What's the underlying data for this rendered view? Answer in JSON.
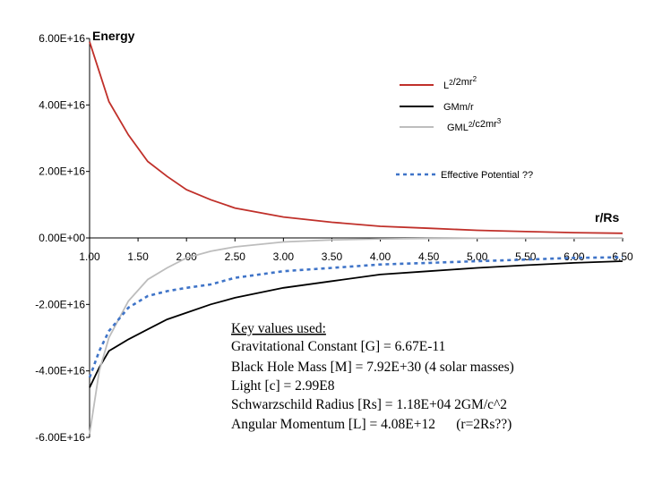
{
  "chart_data": {
    "type": "line",
    "ylabel": "Energy",
    "xlabel": "r/Rs",
    "xlim": [
      1.0,
      6.5
    ],
    "ylim": [
      -6e+16,
      6e+16
    ],
    "x_ticks": [
      "1.00",
      "1.50",
      "2.00",
      "2.50",
      "3.00",
      "3.50",
      "4.00",
      "4.50",
      "5.00",
      "5.50",
      "6.00",
      "6.50"
    ],
    "y_ticks": [
      "6.00E+16",
      "4.00E+16",
      "2.00E+16",
      "0.00E+00",
      "-2.00E+16",
      "-4.00E+16",
      "-6.00E+16"
    ],
    "grid": false,
    "legend_position": "top-right",
    "x": [
      1.0,
      1.1,
      1.2,
      1.4,
      1.6,
      1.8,
      2.0,
      2.25,
      2.5,
      3.0,
      3.5,
      4.0,
      4.5,
      5.0,
      5.5,
      6.0,
      6.5
    ],
    "series": [
      {
        "name": "L²/2mr²",
        "legend_main": "L",
        "legend_sup1": "2",
        "legend_mid": "/2mr",
        "legend_sup2": "2",
        "legend_tail": "",
        "color": "#c0302a",
        "dash": "none",
        "values": [
          5.9e+16,
          5e+16,
          4.1e+16,
          3.1e+16,
          2.3e+16,
          1.85e+16,
          1.45e+16,
          1.15e+16,
          9000000000000000.0,
          6300000000000000.0,
          4700000000000000.0,
          3500000000000000.0,
          2900000000000000.0,
          2300000000000000.0,
          1900000000000000.0,
          1600000000000000.0,
          1400000000000000.0
        ]
      },
      {
        "name": "GMm/r",
        "legend_main": "GMm/r",
        "legend_sup1": "",
        "legend_mid": "",
        "legend_sup2": "",
        "legend_tail": "",
        "color": "#000000",
        "dash": "none",
        "values": [
          -4.5e+16,
          -3.9e+16,
          -3.4e+16,
          -3.05e+16,
          -2.75e+16,
          -2.45e+16,
          -2.25e+16,
          -2e+16,
          -1.8e+16,
          -1.5e+16,
          -1.3e+16,
          -1.1e+16,
          -1e+16,
          -9000000000000000.0,
          -8200000000000000.0,
          -7500000000000000.0,
          -7000000000000000.0
        ]
      },
      {
        "name": "GML²/c2mr³",
        "legend_main": "GML",
        "legend_sup1": "2",
        "legend_mid": "/c2mr",
        "legend_sup2": "3",
        "legend_tail": "",
        "color": "#bdbdbd",
        "dash": "none",
        "values": [
          -5.9e+16,
          -4e+16,
          -3e+16,
          -1.9e+16,
          -1.25e+16,
          -9000000000000000.0,
          -6000000000000000.0,
          -4000000000000000.0,
          -2700000000000000.0,
          -1200000000000000.0,
          -600000000000000.0,
          -300000000000000.0,
          -150000000000000.0,
          -100000000000000.0,
          -70000000000000.0,
          -50000000000000.0,
          -40000000000000.0
        ]
      },
      {
        "name": "Effective Potential ??",
        "legend_main": "Effective Potential ??",
        "legend_sup1": "",
        "legend_mid": "",
        "legend_sup2": "",
        "legend_tail": "",
        "color": "#3f74c8",
        "dash": "4,4",
        "values": [
          -4.2e+16,
          -3.4e+16,
          -2.8e+16,
          -2.1e+16,
          -1.75e+16,
          -1.6e+16,
          -1.5e+16,
          -1.4e+16,
          -1.2e+16,
          -1e+16,
          -9000000000000000.0,
          -8000000000000000.0,
          -7500000000000000.0,
          -7000000000000000.0,
          -6500000000000000.0,
          -6000000000000000.0,
          -5800000000000000.0
        ]
      }
    ],
    "notes": {
      "heading": "Key values used:",
      "lines": [
        "Gravitational Constant [G] = 6.67E-11",
        "Black Hole Mass [M] = 7.92E+30 (4 solar masses)",
        "Light [c] = 2.99E8",
        "Schwarzschild Radius [Rs] = 1.18E+04 2GM/c^2",
        "Angular Momentum [L] = 4.08E+12      (r=2Rs??)"
      ]
    }
  }
}
